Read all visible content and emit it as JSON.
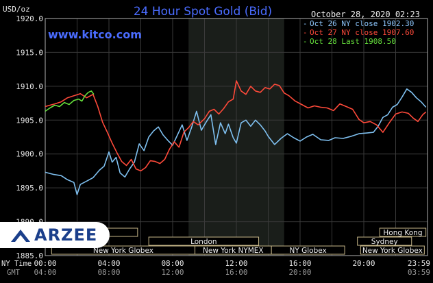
{
  "chart_data": {
    "type": "line",
    "title": "24 Hour Spot Gold (Bid)",
    "timestamp": "October 28, 2020 02:23",
    "source": "www.kitco.com",
    "ylabel": "USD/oz",
    "ylim": [
      1885,
      1920
    ],
    "yticks": [
      "1920.0",
      "1915.0",
      "1910.0",
      "1905.0",
      "1900.0",
      "1895.0",
      "1890.0",
      "1885.0"
    ],
    "x_top_label": "NY Time",
    "x_bottom_label": "GMT",
    "xticks_top": [
      "00:00",
      "04:00",
      "08:00",
      "12:00",
      "16:00",
      "20:00",
      "23:59"
    ],
    "xticks_bottom": [
      "04:00",
      "08:00",
      "12:00",
      "16:00",
      "20:00",
      "03:59"
    ],
    "xlim_hours": [
      0,
      24
    ],
    "shaded_band_hours": [
      9,
      15
    ],
    "legend": [
      {
        "label": "Oct 26 NY close 1902.30",
        "color": "#8ec8ff"
      },
      {
        "label": "Oct 27 NY close 1907.60",
        "color": "#ff4a3a"
      },
      {
        "label": "Oct 28 Last 1908.50",
        "color": "#66e03c"
      }
    ],
    "series": [
      {
        "name": "Oct 26",
        "color": "#7fc0f0",
        "points": [
          [
            0,
            1897.3
          ],
          [
            0.5,
            1897.0
          ],
          [
            1,
            1896.8
          ],
          [
            1.4,
            1896.2
          ],
          [
            1.8,
            1895.8
          ],
          [
            2.0,
            1894.0
          ],
          [
            2.2,
            1895.5
          ],
          [
            2.6,
            1896.0
          ],
          [
            3,
            1896.5
          ],
          [
            3.4,
            1897.6
          ],
          [
            3.7,
            1898.2
          ],
          [
            4,
            1900.3
          ],
          [
            4.2,
            1898.8
          ],
          [
            4.45,
            1899.5
          ],
          [
            4.7,
            1897.2
          ],
          [
            5,
            1896.6
          ],
          [
            5.3,
            1897.8
          ],
          [
            5.6,
            1898.8
          ],
          [
            5.9,
            1901.5
          ],
          [
            6.2,
            1900.5
          ],
          [
            6.5,
            1902.5
          ],
          [
            6.8,
            1903.4
          ],
          [
            7.1,
            1904.0
          ],
          [
            7.4,
            1902.8
          ],
          [
            7.7,
            1902.0
          ],
          [
            8.0,
            1901.3
          ],
          [
            8.3,
            1902.8
          ],
          [
            8.6,
            1904.3
          ],
          [
            8.9,
            1902.0
          ],
          [
            9.2,
            1904.0
          ],
          [
            9.5,
            1906.3
          ],
          [
            9.8,
            1903.5
          ],
          [
            10.1,
            1904.7
          ],
          [
            10.4,
            1905.8
          ],
          [
            10.7,
            1901.4
          ],
          [
            11.0,
            1904.6
          ],
          [
            11.3,
            1903.0
          ],
          [
            11.5,
            1904.4
          ],
          [
            11.8,
            1902.4
          ],
          [
            12.0,
            1901.6
          ],
          [
            12.3,
            1904.6
          ],
          [
            12.6,
            1905.0
          ],
          [
            12.9,
            1904.1
          ],
          [
            13.2,
            1905.0
          ],
          [
            13.5,
            1904.3
          ],
          [
            13.8,
            1903.4
          ],
          [
            14.0,
            1902.6
          ],
          [
            14.4,
            1901.4
          ],
          [
            14.8,
            1902.3
          ],
          [
            15.2,
            1903.0
          ],
          [
            15.6,
            1902.4
          ],
          [
            16.0,
            1901.9
          ],
          [
            16.4,
            1902.5
          ],
          [
            16.8,
            1902.9
          ],
          [
            17.3,
            1902.1
          ],
          [
            17.8,
            1902.0
          ],
          [
            18.2,
            1902.4
          ],
          [
            18.7,
            1902.3
          ],
          [
            19.2,
            1902.6
          ],
          [
            19.7,
            1903.0
          ],
          [
            20.2,
            1903.1
          ],
          [
            20.6,
            1903.2
          ],
          [
            20.9,
            1904.1
          ],
          [
            21.2,
            1905.4
          ],
          [
            21.5,
            1905.8
          ],
          [
            21.8,
            1906.9
          ],
          [
            22.1,
            1907.3
          ],
          [
            22.4,
            1908.4
          ],
          [
            22.7,
            1909.6
          ],
          [
            23.0,
            1909.1
          ],
          [
            23.3,
            1908.3
          ],
          [
            23.6,
            1907.7
          ],
          [
            23.9,
            1906.9
          ]
        ]
      },
      {
        "name": "Oct 27",
        "color": "#ff4a3a",
        "points": [
          [
            0,
            1907.0
          ],
          [
            0.3,
            1907.2
          ],
          [
            0.6,
            1907.4
          ],
          [
            1.0,
            1907.7
          ],
          [
            1.4,
            1908.3
          ],
          [
            1.8,
            1908.6
          ],
          [
            2.2,
            1908.9
          ],
          [
            2.6,
            1908.3
          ],
          [
            3.0,
            1908.8
          ],
          [
            3.3,
            1907.0
          ],
          [
            3.6,
            1904.7
          ],
          [
            3.9,
            1903.2
          ],
          [
            4.2,
            1901.6
          ],
          [
            4.5,
            1900.2
          ],
          [
            4.8,
            1898.9
          ],
          [
            5.1,
            1898.3
          ],
          [
            5.4,
            1899.2
          ],
          [
            5.7,
            1897.8
          ],
          [
            6.0,
            1897.5
          ],
          [
            6.3,
            1898.0
          ],
          [
            6.6,
            1899.0
          ],
          [
            6.9,
            1898.9
          ],
          [
            7.2,
            1898.6
          ],
          [
            7.5,
            1899.2
          ],
          [
            7.8,
            1900.7
          ],
          [
            8.1,
            1901.8
          ],
          [
            8.4,
            1901.0
          ],
          [
            8.7,
            1903.2
          ],
          [
            9.0,
            1903.9
          ],
          [
            9.3,
            1904.8
          ],
          [
            9.6,
            1904.3
          ],
          [
            10.0,
            1905.2
          ],
          [
            10.3,
            1906.3
          ],
          [
            10.6,
            1906.6
          ],
          [
            10.9,
            1905.9
          ],
          [
            11.2,
            1906.7
          ],
          [
            11.5,
            1907.7
          ],
          [
            11.8,
            1908.1
          ],
          [
            12.0,
            1910.8
          ],
          [
            12.3,
            1909.3
          ],
          [
            12.6,
            1908.8
          ],
          [
            12.9,
            1910.0
          ],
          [
            13.2,
            1909.3
          ],
          [
            13.5,
            1909.1
          ],
          [
            13.8,
            1909.8
          ],
          [
            14.1,
            1909.6
          ],
          [
            14.4,
            1910.3
          ],
          [
            14.7,
            1910.1
          ],
          [
            15.0,
            1909.0
          ],
          [
            15.3,
            1908.6
          ],
          [
            15.7,
            1907.8
          ],
          [
            16.1,
            1907.3
          ],
          [
            16.5,
            1906.8
          ],
          [
            16.9,
            1907.1
          ],
          [
            17.3,
            1906.9
          ],
          [
            17.7,
            1906.8
          ],
          [
            18.1,
            1906.4
          ],
          [
            18.5,
            1907.4
          ],
          [
            18.9,
            1907.0
          ],
          [
            19.3,
            1906.6
          ],
          [
            19.7,
            1905.1
          ],
          [
            20.0,
            1904.6
          ],
          [
            20.4,
            1904.8
          ],
          [
            20.8,
            1904.3
          ],
          [
            21.2,
            1903.2
          ],
          [
            21.6,
            1904.6
          ],
          [
            22.0,
            1905.9
          ],
          [
            22.4,
            1906.2
          ],
          [
            22.8,
            1906.0
          ],
          [
            23.1,
            1905.3
          ],
          [
            23.4,
            1904.8
          ],
          [
            23.7,
            1905.8
          ],
          [
            23.9,
            1906.2
          ]
        ]
      },
      {
        "name": "Oct 28",
        "color": "#66e03c",
        "points": [
          [
            0,
            1906.3
          ],
          [
            0.3,
            1906.8
          ],
          [
            0.6,
            1907.2
          ],
          [
            0.9,
            1907.0
          ],
          [
            1.2,
            1907.6
          ],
          [
            1.5,
            1907.3
          ],
          [
            1.8,
            1907.9
          ],
          [
            2.1,
            1908.1
          ],
          [
            2.3,
            1907.8
          ],
          [
            2.5,
            1908.6
          ],
          [
            2.7,
            1909.1
          ],
          [
            2.9,
            1909.3
          ],
          [
            3.05,
            1908.8
          ]
        ]
      }
    ],
    "sessions": [
      {
        "label": "New York Globex",
        "hours": [
          0.4,
          9.4
        ],
        "row": 0
      },
      {
        "label": "New York NYMEX",
        "hours": [
          9.4,
          14.2
        ],
        "row": 0
      },
      {
        "label": "NY Globex",
        "hours": [
          14.2,
          18.8
        ],
        "row": 0
      },
      {
        "label": "New York Globex",
        "hours": [
          19.8,
          23.8
        ],
        "row": 0
      },
      {
        "label": "London",
        "hours": [
          6.5,
          13.4
        ],
        "row": 1
      },
      {
        "label": "Sydney",
        "hours": [
          19.6,
          23.0
        ],
        "row": 1
      },
      {
        "label": "Hong Kong",
        "hours": [
          21.0,
          23.9
        ],
        "row": 2
      },
      {
        "label": "",
        "hours": [
          0.4,
          5.8
        ],
        "row": 2
      }
    ],
    "grid": true
  },
  "watermark": "ARZEE"
}
